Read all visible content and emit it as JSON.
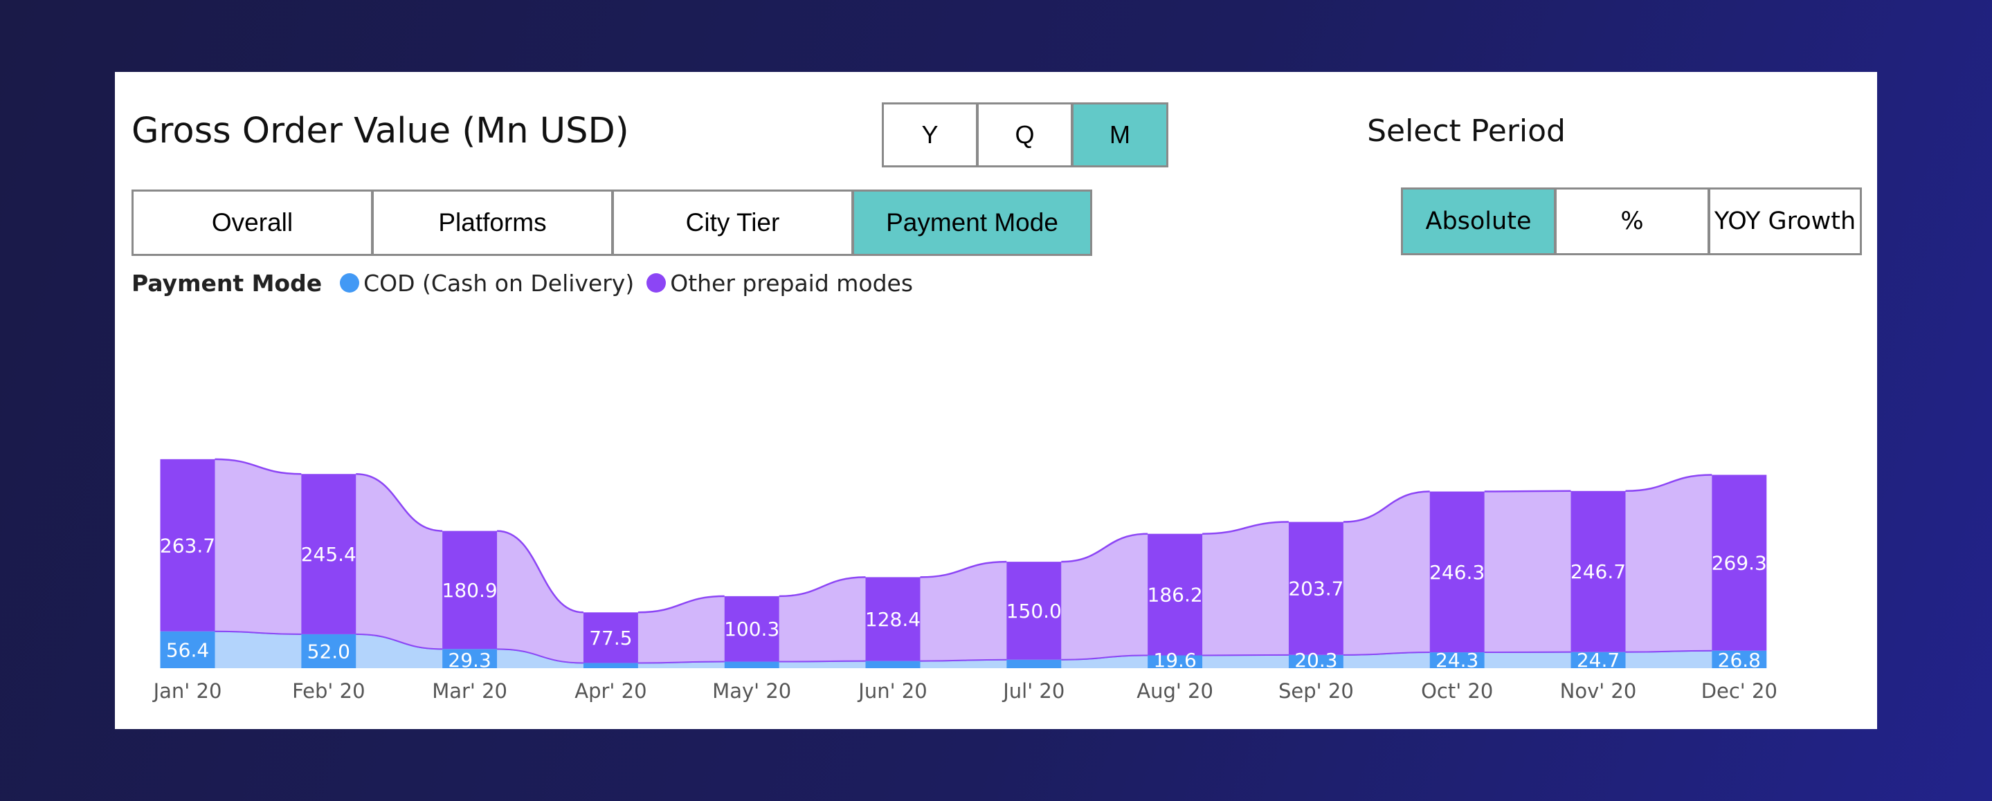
{
  "title": "Gross Order Value (Mn USD)",
  "period": {
    "label": "Select Period",
    "options": [
      "Y",
      "Q",
      "M"
    ],
    "selected": "M"
  },
  "segments": {
    "options": [
      "Overall",
      "Platforms",
      "City Tier",
      "Payment Mode"
    ],
    "selected": "Payment Mode"
  },
  "modes": {
    "options": [
      "Absolute",
      "%",
      "YOY Growth"
    ],
    "selected": "Absolute"
  },
  "legend": {
    "title": "Payment Mode",
    "items": [
      "COD (Cash on Delivery)",
      "Other prepaid modes"
    ]
  },
  "colors": {
    "accent": "#62c9c8",
    "cod": "#4299f5",
    "cod_ribbon": "#b3d4fc",
    "prepaid": "#8c45f5",
    "prepaid_ribbon": "#d2b6fb",
    "label_text": "#ffffff",
    "axis_text": "#555555"
  },
  "chart_data": {
    "type": "bar",
    "stacked": true,
    "categories": [
      "Jan' 20",
      "Feb' 20",
      "Mar' 20",
      "Apr' 20",
      "May' 20",
      "Jun' 20",
      "Jul' 20",
      "Aug' 20",
      "Sep' 20",
      "Oct' 20",
      "Nov' 20",
      "Dec' 20"
    ],
    "series": [
      {
        "name": "COD (Cash on Delivery)",
        "values": [
          56.4,
          52.0,
          29.3,
          8,
          10,
          11,
          13,
          19.6,
          20.3,
          24.3,
          24.7,
          26.8
        ],
        "labels": [
          "56.4",
          "52.0",
          "29.3",
          "",
          "",
          "",
          "",
          "19.6",
          "20.3",
          "24.3",
          "24.7",
          "26.8"
        ]
      },
      {
        "name": "Other prepaid modes",
        "values": [
          263.7,
          245.4,
          180.9,
          77.5,
          100.3,
          128.4,
          150.0,
          186.2,
          203.7,
          246.3,
          246.7,
          269.3
        ],
        "labels": [
          "263.7",
          "245.4",
          "180.9",
          "77.5",
          "100.3",
          "128.4",
          "150.0",
          "186.2",
          "203.7",
          "246.3",
          "246.7",
          "269.3"
        ]
      }
    ],
    "ylim": [
      0,
      320
    ],
    "grid": false,
    "legend_position": "top-left"
  }
}
